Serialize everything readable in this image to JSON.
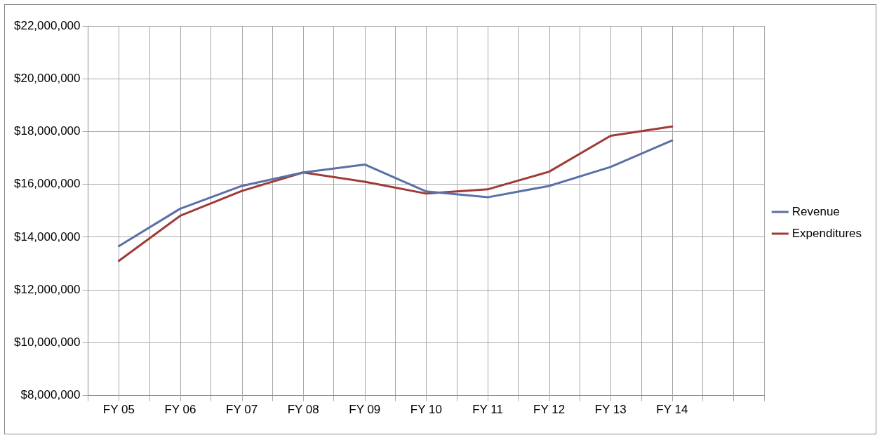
{
  "chart_data": {
    "type": "line",
    "categories": [
      "FY 05",
      "FY 06",
      "FY 07",
      "FY 08",
      "FY 09",
      "FY 10",
      "FY 11",
      "FY 12",
      "FY 13",
      "FY 14",
      null
    ],
    "series": [
      {
        "name": "Revenue",
        "color": "#5b6fa8",
        "values": [
          13660000,
          15080000,
          15940000,
          16450000,
          16750000,
          15730000,
          15510000,
          15940000,
          16660000,
          17660000,
          null
        ]
      },
      {
        "name": "Expenditures",
        "color": "#a03a36",
        "values": [
          13100000,
          14810000,
          15750000,
          16450000,
          16100000,
          15650000,
          15810000,
          16480000,
          17840000,
          18190000,
          null
        ]
      }
    ],
    "ylim": [
      8000000,
      22000000
    ],
    "yticks": [
      {
        "value": 8000000,
        "label": "$8,000,000"
      },
      {
        "value": 10000000,
        "label": "$10,000,000"
      },
      {
        "value": 12000000,
        "label": "$12,000,000"
      },
      {
        "value": 14000000,
        "label": "$14,000,000"
      },
      {
        "value": 16000000,
        "label": "$16,000,000"
      },
      {
        "value": 18000000,
        "label": "$18,000,000"
      },
      {
        "value": 20000000,
        "label": "$20,000,000"
      },
      {
        "value": 22000000,
        "label": "$22,000,000"
      }
    ],
    "grid": true,
    "legend": "right",
    "marker": "none",
    "line_style": "solid"
  }
}
